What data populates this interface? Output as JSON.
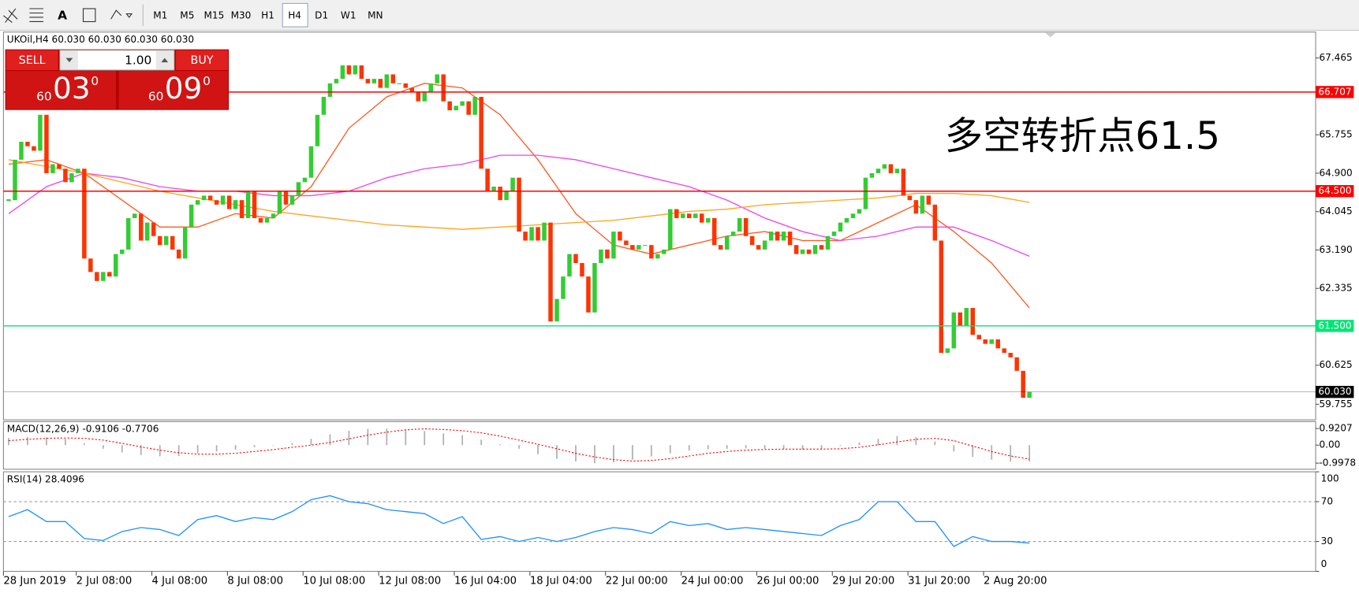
{
  "toolbar": {
    "timeframes": [
      "M1",
      "M5",
      "M15",
      "M30",
      "H1",
      "H4",
      "D1",
      "W1",
      "MN"
    ],
    "active": "H4"
  },
  "trade_panel": {
    "sell": "SELL",
    "lot": "1.00",
    "buy": "BUY",
    "bid": {
      "big": "60",
      "main": "03",
      "sup": "0"
    },
    "ask": {
      "big": "60",
      "main": "09",
      "sup": "0"
    }
  },
  "chart_data": [
    {
      "type": "candlestick",
      "title": "UKOil,H4  60.030 60.030 60.030 60.030",
      "up_color": "#32cd32",
      "down_color": "#ff3300",
      "close": [
        64.3,
        65.2,
        65.6,
        65.5,
        65.4,
        66.2,
        64.9,
        65.1,
        65.0,
        64.7,
        64.9,
        65.0,
        63.0,
        62.7,
        62.5,
        62.7,
        62.6,
        63.1,
        63.2,
        63.9,
        64.0,
        63.4,
        63.8,
        63.5,
        63.3,
        63.5,
        63.2,
        63.0,
        63.7,
        64.2,
        64.3,
        64.4,
        64.3,
        64.2,
        64.4,
        64.1,
        64.3,
        63.9,
        64.5,
        63.9,
        63.8,
        63.9,
        64.0,
        64.5,
        64.2,
        64.4,
        64.7,
        64.8,
        65.5,
        66.2,
        66.6,
        66.9,
        67.0,
        67.3,
        67.1,
        67.3,
        67.0,
        66.9,
        67.0,
        66.8,
        67.1,
        66.9,
        66.9,
        66.8,
        66.7,
        66.5,
        66.7,
        66.9,
        67.1,
        66.5,
        66.3,
        66.4,
        66.5,
        66.2,
        66.6,
        65.0,
        64.5,
        64.6,
        64.3,
        64.5,
        64.8,
        63.6,
        63.4,
        63.7,
        63.4,
        63.8,
        61.6,
        62.1,
        62.6,
        63.1,
        62.9,
        62.6,
        61.8,
        62.9,
        63.2,
        63.0,
        63.6,
        63.4,
        63.3,
        63.2,
        63.3,
        63.3,
        63.0,
        63.1,
        63.2,
        64.1,
        63.9,
        64.0,
        63.9,
        64.0,
        63.8,
        63.9,
        63.3,
        63.2,
        63.5,
        63.6,
        63.9,
        63.5,
        63.3,
        63.2,
        63.4,
        63.6,
        63.4,
        63.6,
        63.3,
        63.1,
        63.2,
        63.1,
        63.3,
        63.2,
        63.5,
        63.6,
        63.8,
        63.9,
        64.0,
        64.1,
        64.8,
        64.9,
        65.0,
        65.1,
        64.9,
        65.0,
        64.4,
        64.3,
        64.0,
        64.4,
        64.2,
        63.4,
        60.9,
        61.0,
        61.8,
        61.5,
        61.9,
        61.3,
        61.2,
        61.1,
        61.2,
        61.0,
        60.9,
        60.8,
        60.5,
        59.9,
        60.03
      ],
      "moving_averages": [
        {
          "color": "#ff5a1f",
          "values": [
            65.1,
            65.2,
            64.9,
            64.3,
            63.7,
            63.7,
            64.0,
            63.9,
            64.6,
            65.9,
            66.6,
            66.9,
            66.8,
            66.2,
            65.2,
            64.0,
            63.3,
            63.1,
            63.3,
            63.5,
            63.6,
            63.4,
            63.4,
            63.8,
            64.2,
            63.6,
            62.9,
            61.9
          ]
        },
        {
          "color": "#ee44ee",
          "values": [
            64.0,
            64.6,
            64.9,
            64.8,
            64.6,
            64.5,
            64.5,
            64.4,
            64.4,
            64.5,
            64.8,
            65.0,
            65.1,
            65.3,
            65.3,
            65.2,
            65.0,
            64.8,
            64.6,
            64.3,
            63.9,
            63.6,
            63.4,
            63.5,
            63.7,
            63.7,
            63.4,
            63.05
          ]
        },
        {
          "color": "#ffa31a",
          "values": [
            65.2,
            65.05,
            64.9,
            64.7,
            64.5,
            64.35,
            64.2,
            64.05,
            63.95,
            63.85,
            63.75,
            63.7,
            63.65,
            63.7,
            63.75,
            63.8,
            63.85,
            63.95,
            64.05,
            64.1,
            64.2,
            64.25,
            64.3,
            64.35,
            64.45,
            64.45,
            64.4,
            64.25
          ]
        }
      ],
      "ylim": [
        59.408,
        68.043
      ],
      "yticks": [
        67.465,
        65.755,
        {
          "value": 64.9,
          "label": "64.900"
        },
        64.045,
        {
          "value": 63.19,
          "label": "63.190"
        },
        62.335,
        60.625,
        59.755
      ],
      "levels": [
        66.707,
        {
          "value": 64.5,
          "label": "64.500"
        },
        {
          "value": 61.5,
          "label": "61.500"
        },
        {
          "value": 60.03,
          "label": "60.030"
        }
      ],
      "level_colors": [
        "#ff0000",
        "#ff0000",
        "#00e676",
        "#000000"
      ],
      "annotation": "多空转折点61.5",
      "x_labels": [
        "28 Jun 2019",
        "2 Jul 08:00",
        "4 Jul 08:00",
        "8 Jul 08:00",
        "10 Jul 08:00",
        "12 Jul 08:00",
        "16 Jul 04:00",
        "18 Jul 04:00",
        "22 Jul 00:00",
        "24 Jul 00:00",
        "26 Jul 00:00",
        "29 Jul 20:00",
        "31 Jul 20:00",
        "2 Aug 20:00"
      ]
    },
    {
      "type": "macd",
      "title": "MACD(12,26,9) -0.9106 -0.7706",
      "main": [
        0.4,
        0.45,
        0.42,
        0.35,
        0.1,
        -0.2,
        -0.4,
        -0.55,
        -0.62,
        -0.6,
        -0.45,
        -0.35,
        -0.25,
        -0.12,
        -0.02,
        0.1,
        0.35,
        0.6,
        0.8,
        0.9,
        0.92,
        0.85,
        0.78,
        0.65,
        0.55,
        0.3,
        0.05,
        -0.2,
        -0.5,
        -0.75,
        -0.9,
        -1.0,
        -0.95,
        -0.8,
        -0.62,
        -0.45,
        -0.3,
        -0.22,
        -0.2,
        -0.18,
        -0.2,
        -0.22,
        -0.25,
        -0.2,
        -0.05,
        0.15,
        0.35,
        0.5,
        0.45,
        0.2,
        -0.35,
        -0.65,
        -0.8,
        -0.9,
        -0.9106
      ],
      "signal": [
        0.25,
        0.32,
        0.38,
        0.4,
        0.38,
        0.28,
        0.1,
        -0.1,
        -0.28,
        -0.42,
        -0.5,
        -0.5,
        -0.45,
        -0.35,
        -0.25,
        -0.12,
        0.0,
        0.15,
        0.35,
        0.55,
        0.72,
        0.85,
        0.9,
        0.87,
        0.8,
        0.68,
        0.5,
        0.28,
        0.05,
        -0.2,
        -0.45,
        -0.65,
        -0.8,
        -0.88,
        -0.85,
        -0.75,
        -0.6,
        -0.45,
        -0.35,
        -0.28,
        -0.24,
        -0.22,
        -0.22,
        -0.22,
        -0.2,
        -0.12,
        0.02,
        0.18,
        0.32,
        0.38,
        0.25,
        -0.05,
        -0.35,
        -0.6,
        -0.7706
      ],
      "hist_color": "#b0b0b0",
      "signal_color": "#ff0000",
      "ylim": [
        -1.333,
        1.305
      ],
      "yticks": [
        0.9207,
        {
          "value": 0,
          "label": "0.00"
        },
        -0.9978
      ]
    },
    {
      "type": "rsi",
      "title": "RSI(14) 28.4096",
      "color": "#1e90ff",
      "values": [
        55,
        62,
        50,
        50,
        33,
        31,
        40,
        44,
        42,
        36,
        52,
        56,
        50,
        54,
        52,
        60,
        72,
        76,
        70,
        68,
        62,
        60,
        58,
        48,
        55,
        32,
        35,
        30,
        34,
        30,
        34,
        40,
        44,
        42,
        38,
        50,
        46,
        48,
        42,
        44,
        42,
        40,
        38,
        36,
        46,
        52,
        70,
        70,
        50,
        50,
        25,
        35,
        30,
        30,
        28.4096
      ],
      "ylim": [
        0,
        100
      ],
      "yticks": [
        100,
        70,
        30,
        0
      ],
      "levels": [
        70,
        30
      ]
    }
  ]
}
